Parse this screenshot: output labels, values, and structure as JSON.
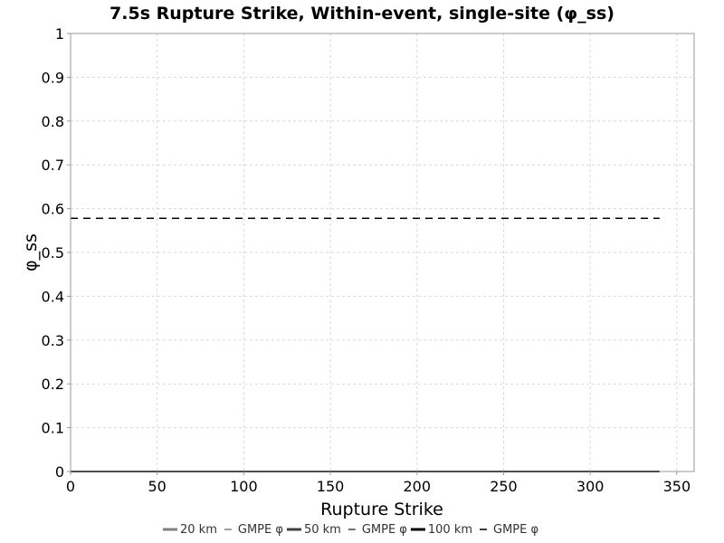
{
  "chart_data": {
    "type": "line",
    "title": "7.5s Rupture Strike, Within-event, single-site (φ_ss)",
    "xlabel": "Rupture Strike",
    "ylabel": "φ_ss",
    "xlim": [
      0,
      360
    ],
    "ylim": [
      0,
      1
    ],
    "xticks": [
      0,
      50,
      100,
      150,
      200,
      250,
      300,
      350
    ],
    "yticks": [
      0,
      0.1,
      0.2,
      0.3,
      0.4,
      0.5,
      0.6,
      0.7,
      0.8,
      0.9,
      1
    ],
    "grid": true,
    "legend_position": "bottom",
    "series": [
      {
        "name": "20 km",
        "style": "solid",
        "color": "#808080",
        "x": [
          0,
          340
        ],
        "y": [
          0,
          0
        ]
      },
      {
        "name": "GMPE φ",
        "style": "dashed",
        "color": "#808080",
        "x": [
          0,
          340
        ],
        "y": [
          0.578,
          0.578
        ]
      },
      {
        "name": "50 km",
        "style": "solid",
        "color": "#404040",
        "x": [
          0,
          340
        ],
        "y": [
          0,
          0
        ]
      },
      {
        "name": "GMPE φ",
        "style": "dashed",
        "color": "#404040",
        "x": [
          0,
          340
        ],
        "y": [
          0.578,
          0.578
        ]
      },
      {
        "name": "100 km",
        "style": "solid",
        "color": "#000000",
        "x": [
          0,
          340
        ],
        "y": [
          0,
          0
        ]
      },
      {
        "name": "GMPE φ",
        "style": "dashed",
        "color": "#000000",
        "x": [
          0,
          340
        ],
        "y": [
          0.578,
          0.578
        ]
      }
    ]
  }
}
